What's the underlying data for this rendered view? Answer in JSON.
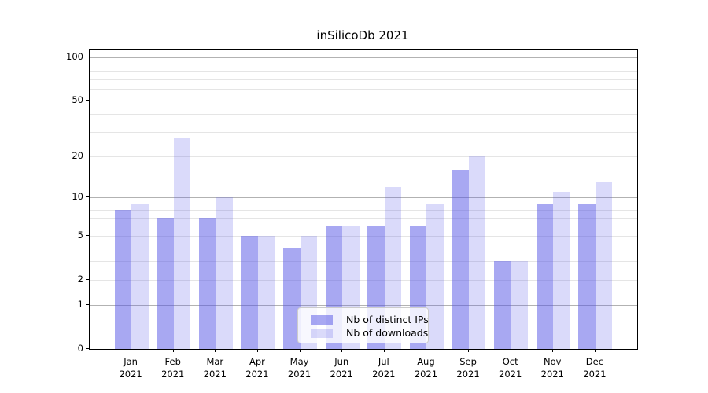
{
  "title": "inSilicoDb 2021",
  "chart_data": {
    "type": "bar",
    "title": "inSilicoDb 2021",
    "months": [
      "Jan",
      "Feb",
      "Mar",
      "Apr",
      "May",
      "Jun",
      "Jul",
      "Aug",
      "Sep",
      "Oct",
      "Nov",
      "Dec"
    ],
    "year": "2021",
    "series": [
      {
        "name": "Nb of distinct IPs",
        "values": [
          8,
          7,
          7,
          5,
          4,
          6,
          6,
          6,
          16,
          3,
          9,
          9
        ],
        "color": "rgba(85,85,230,0.51)"
      },
      {
        "name": "Nb of downloads",
        "values": [
          9,
          27,
          10,
          5,
          5,
          6,
          12,
          9,
          20,
          3,
          11,
          13
        ],
        "color": "rgba(85,85,230,0.22)"
      }
    ],
    "y_scale": "log1p",
    "y_axis_ticks": [
      0,
      1,
      2,
      5,
      10,
      20,
      50,
      100
    ],
    "major_gridlines": [
      1,
      10,
      100
    ],
    "minor_gridlines": [
      2,
      3,
      4,
      5,
      6,
      7,
      8,
      9,
      20,
      30,
      40,
      50,
      60,
      70,
      80,
      90
    ],
    "grid": true,
    "legend_position": "lower center",
    "xlabel": "",
    "ylabel": ""
  },
  "colors": {
    "bar_dark": "rgba(85,85,230,0.51)",
    "bar_light": "rgba(85,85,230,0.22)",
    "grid_major": "#b2b2b2",
    "grid_minor": "#e5e5e5",
    "spine": "#000000",
    "text": "#000000",
    "legend_border": "#cccccc",
    "legend_bg": "rgba(255,255,255,0.8)"
  }
}
